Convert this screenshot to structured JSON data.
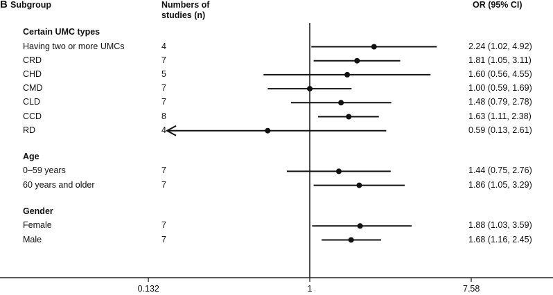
{
  "panel_label": "B",
  "headers": {
    "subgroup": "Subgroup",
    "studies_line1": "Numbers of",
    "studies_line2": "studies (n)",
    "or": "OR (95% CI)"
  },
  "chart_data": {
    "type": "forest",
    "x_scale": "log",
    "reference_line": 1,
    "xticks": [
      0.132,
      1,
      7.58
    ],
    "xtick_labels": [
      "0.132",
      "1",
      "7.58"
    ],
    "groups": [
      {
        "name": "Certain UMC types",
        "rows": [
          {
            "label": "Having two or more UMCs",
            "n": "4",
            "or": 2.24,
            "lo": 1.02,
            "hi": 4.92,
            "text": "2.24 (1.02, 4.92)"
          },
          {
            "label": "CRD",
            "n": "7",
            "or": 1.81,
            "lo": 1.05,
            "hi": 3.11,
            "text": "1.81 (1.05, 3.11)"
          },
          {
            "label": "CHD",
            "n": "5",
            "or": 1.6,
            "lo": 0.56,
            "hi": 4.55,
            "text": "1.60 (0.56, 4.55)"
          },
          {
            "label": "CMD",
            "n": "7",
            "or": 1.0,
            "lo": 0.59,
            "hi": 1.69,
            "text": "1.00 (0.59, 1.69)"
          },
          {
            "label": "CLD",
            "n": "7",
            "or": 1.48,
            "lo": 0.79,
            "hi": 2.78,
            "text": "1.48 (0.79, 2.78)"
          },
          {
            "label": "CCD",
            "n": "8",
            "or": 1.63,
            "lo": 1.11,
            "hi": 2.38,
            "text": "1.63 (1.11, 2.38)"
          },
          {
            "label": "RD",
            "n": "4",
            "or": 0.59,
            "lo": 0.13,
            "hi": 2.61,
            "text": "0.59 (0.13, 2.61)",
            "arrow_left": true
          }
        ]
      },
      {
        "name": "Age",
        "rows": [
          {
            "label": "0–59 years",
            "n": "7",
            "or": 1.44,
            "lo": 0.75,
            "hi": 2.76,
            "text": "1.44 (0.75, 2.76)"
          },
          {
            "label": "60 years and older",
            "n": "7",
            "or": 1.86,
            "lo": 1.05,
            "hi": 3.29,
            "text": "1.86 (1.05, 3.29)"
          }
        ]
      },
      {
        "name": "Gender",
        "rows": [
          {
            "label": "Female",
            "n": "7",
            "or": 1.88,
            "lo": 1.03,
            "hi": 3.59,
            "text": "1.88 (1.03, 3.59)"
          },
          {
            "label": "Male",
            "n": "7",
            "or": 1.68,
            "lo": 1.16,
            "hi": 2.45,
            "text": "1.68 (1.16, 2.45)"
          }
        ]
      }
    ]
  }
}
